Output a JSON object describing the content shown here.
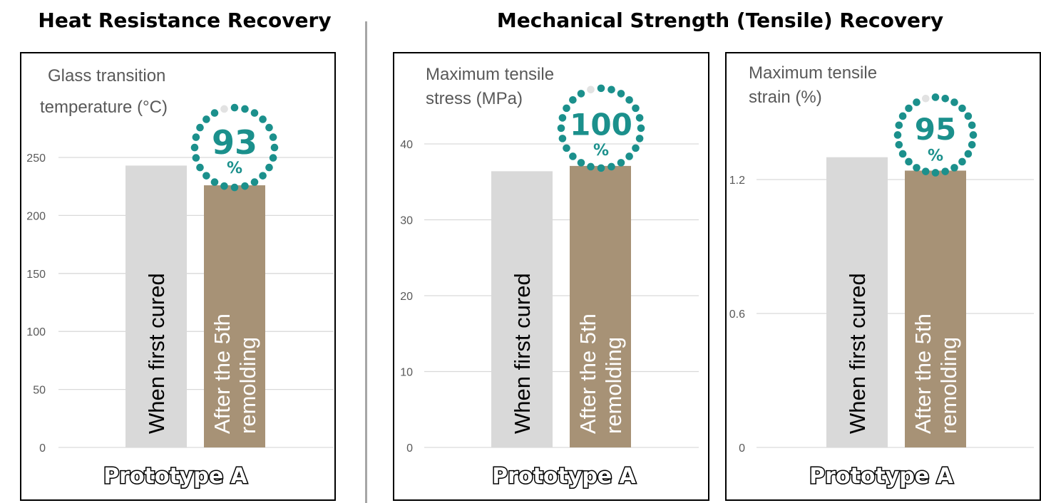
{
  "sections": {
    "heat_title": "Heat Resistance Recovery",
    "mech_title": "Mechanical Strength (Tensile) Recovery"
  },
  "colors": {
    "before": "#d9d9d9",
    "after": "#a79276",
    "accent": "#1b908c",
    "dot_light": "#e2e2e2",
    "grid": "#d9d9d9"
  },
  "chart_data": [
    {
      "type": "bar",
      "ylabel": [
        "Glass transition",
        "temperature (°C)"
      ],
      "ylim": [
        0,
        250
      ],
      "yticks": [
        "0",
        "50",
        "100",
        "150",
        "200",
        "250"
      ],
      "ytick_values": [
        0,
        50,
        100,
        150,
        200,
        250
      ],
      "categories": [
        "When first cured",
        [
          "After the 5th",
          "remolding"
        ]
      ],
      "values": [
        243,
        226
      ],
      "recovery_value": "93",
      "recovery_unit": "%",
      "group_label": "Prototype A",
      "grid": true
    },
    {
      "type": "bar",
      "ylabel": [
        "Maximum tensile",
        "stress (MPa)"
      ],
      "ylim": [
        0,
        40
      ],
      "yticks": [
        "0",
        "10",
        "20",
        "30",
        "40"
      ],
      "ytick_values": [
        0,
        10,
        20,
        30,
        40
      ],
      "categories": [
        "When first cured",
        [
          "After the 5th",
          "remolding"
        ]
      ],
      "values": [
        36.4,
        37.1
      ],
      "recovery_value": "100",
      "recovery_unit": "%",
      "group_label": "Prototype A",
      "grid": true
    },
    {
      "type": "bar",
      "ylabel": [
        "Maximum tensile",
        "strain (%)"
      ],
      "ylim": [
        0,
        1.2
      ],
      "yticks": [
        "0",
        "0.6",
        "1.2"
      ],
      "ytick_values": [
        0,
        0.6,
        1.2
      ],
      "categories": [
        "When first cured",
        [
          "After the 5th",
          "remolding"
        ]
      ],
      "values": [
        1.3,
        1.24
      ],
      "recovery_value": "95",
      "recovery_unit": "%",
      "group_label": "Prototype A",
      "grid": true
    }
  ]
}
